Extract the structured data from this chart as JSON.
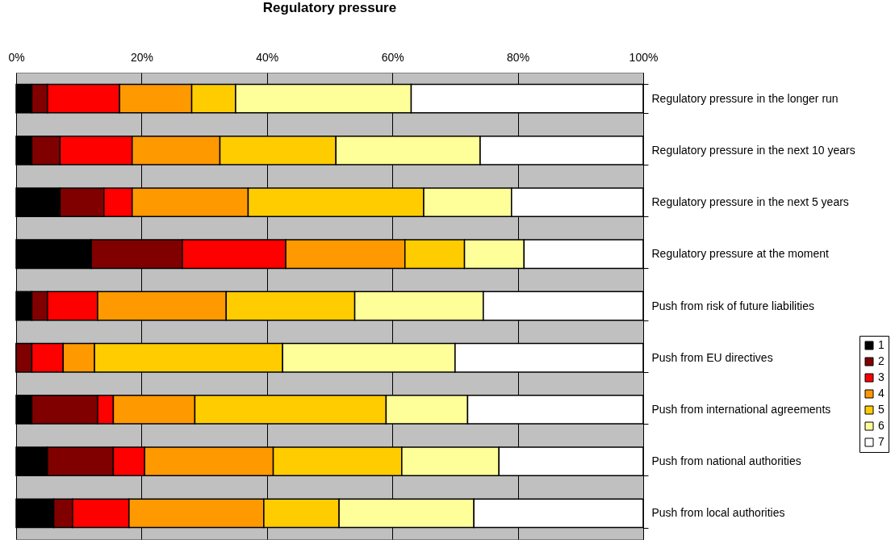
{
  "chart_data": {
    "type": "bar",
    "title": "Regulatory pressure",
    "orientation": "horizontal",
    "stacked": true,
    "categories": [
      "Regulatory pressure in the longer run",
      "Regulatory pressure in the next 10 years",
      "Regulatory pressure in the next 5 years",
      "Regulatory pressure at the moment",
      "Push from risk of future liabilities",
      "Push from EU directives",
      "Push from international agreements",
      "Push from national authorities",
      "Push from local authorities"
    ],
    "series": [
      {
        "name": "1",
        "color": "#000000",
        "values": [
          2.5,
          2.5,
          7,
          12,
          2.5,
          0,
          2.5,
          5,
          6
        ]
      },
      {
        "name": "2",
        "color": "#800000",
        "values": [
          2.5,
          4.5,
          7,
          14.5,
          2.5,
          2.5,
          10.5,
          10.5,
          3
        ]
      },
      {
        "name": "3",
        "color": "#ff0000",
        "values": [
          11.5,
          11.5,
          4.5,
          16.5,
          8,
          5,
          2.5,
          5,
          9
        ]
      },
      {
        "name": "4",
        "color": "#ff9900",
        "values": [
          11.5,
          14,
          18.5,
          19,
          20.5,
          5,
          13,
          20.5,
          21.5
        ]
      },
      {
        "name": "5",
        "color": "#ffcc00",
        "values": [
          7,
          18.5,
          28,
          9.5,
          20.5,
          30,
          30.5,
          20.5,
          12
        ]
      },
      {
        "name": "6",
        "color": "#ffff99",
        "values": [
          28,
          23,
          14,
          9.5,
          20.5,
          27.5,
          13,
          15.5,
          21.5
        ]
      },
      {
        "name": "7",
        "color": "#ffffff",
        "values": [
          37,
          26,
          21,
          19,
          25.5,
          30,
          28,
          23,
          27
        ]
      }
    ],
    "xlim": [
      0,
      100
    ],
    "xticks": [
      {
        "value": 0,
        "label": "0%"
      },
      {
        "value": 20,
        "label": "20%"
      },
      {
        "value": 40,
        "label": "40%"
      },
      {
        "value": 60,
        "label": "60%"
      },
      {
        "value": 80,
        "label": "80%"
      },
      {
        "value": 100,
        "label": "100%"
      }
    ],
    "grid": "x",
    "legend": "right"
  }
}
